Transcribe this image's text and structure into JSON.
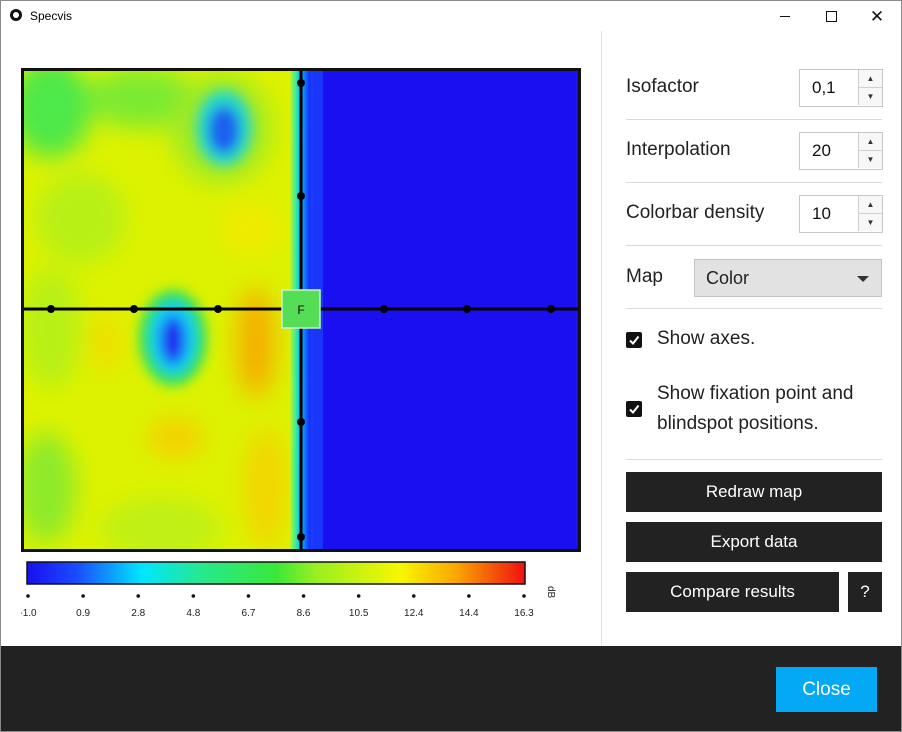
{
  "window": {
    "title": "Specvis",
    "app_icon": "eye-icon"
  },
  "map": {
    "fixation_label": "F",
    "colors": {
      "low": "#1a0ff0",
      "border": "#111111",
      "fixation": "#55dd55"
    }
  },
  "colorbar": {
    "unit": "dB",
    "ticks": [
      "-1.0",
      "0.9",
      "2.8",
      "4.8",
      "6.7",
      "8.6",
      "10.5",
      "12.4",
      "14.4",
      "16.3"
    ]
  },
  "settings": {
    "isofactor": {
      "label": "Isofactor",
      "value": "0,1"
    },
    "interpolation": {
      "label": "Interpolation",
      "value": "20"
    },
    "colorbar_density": {
      "label": "Colorbar density",
      "value": "10"
    },
    "map": {
      "label": "Map",
      "value": "Color"
    },
    "show_axes": {
      "label": "Show axes.",
      "checked": true
    },
    "show_fixation": {
      "label_line1": "Show fixation point and",
      "label_line2": "blindspot positions.",
      "checked": true
    }
  },
  "actions": {
    "redraw": "Redraw map",
    "export": "Export data",
    "compare": "Compare results",
    "help": "?",
    "close": "Close"
  },
  "colors": {
    "accent": "#03a9f4",
    "dark": "#222222"
  }
}
